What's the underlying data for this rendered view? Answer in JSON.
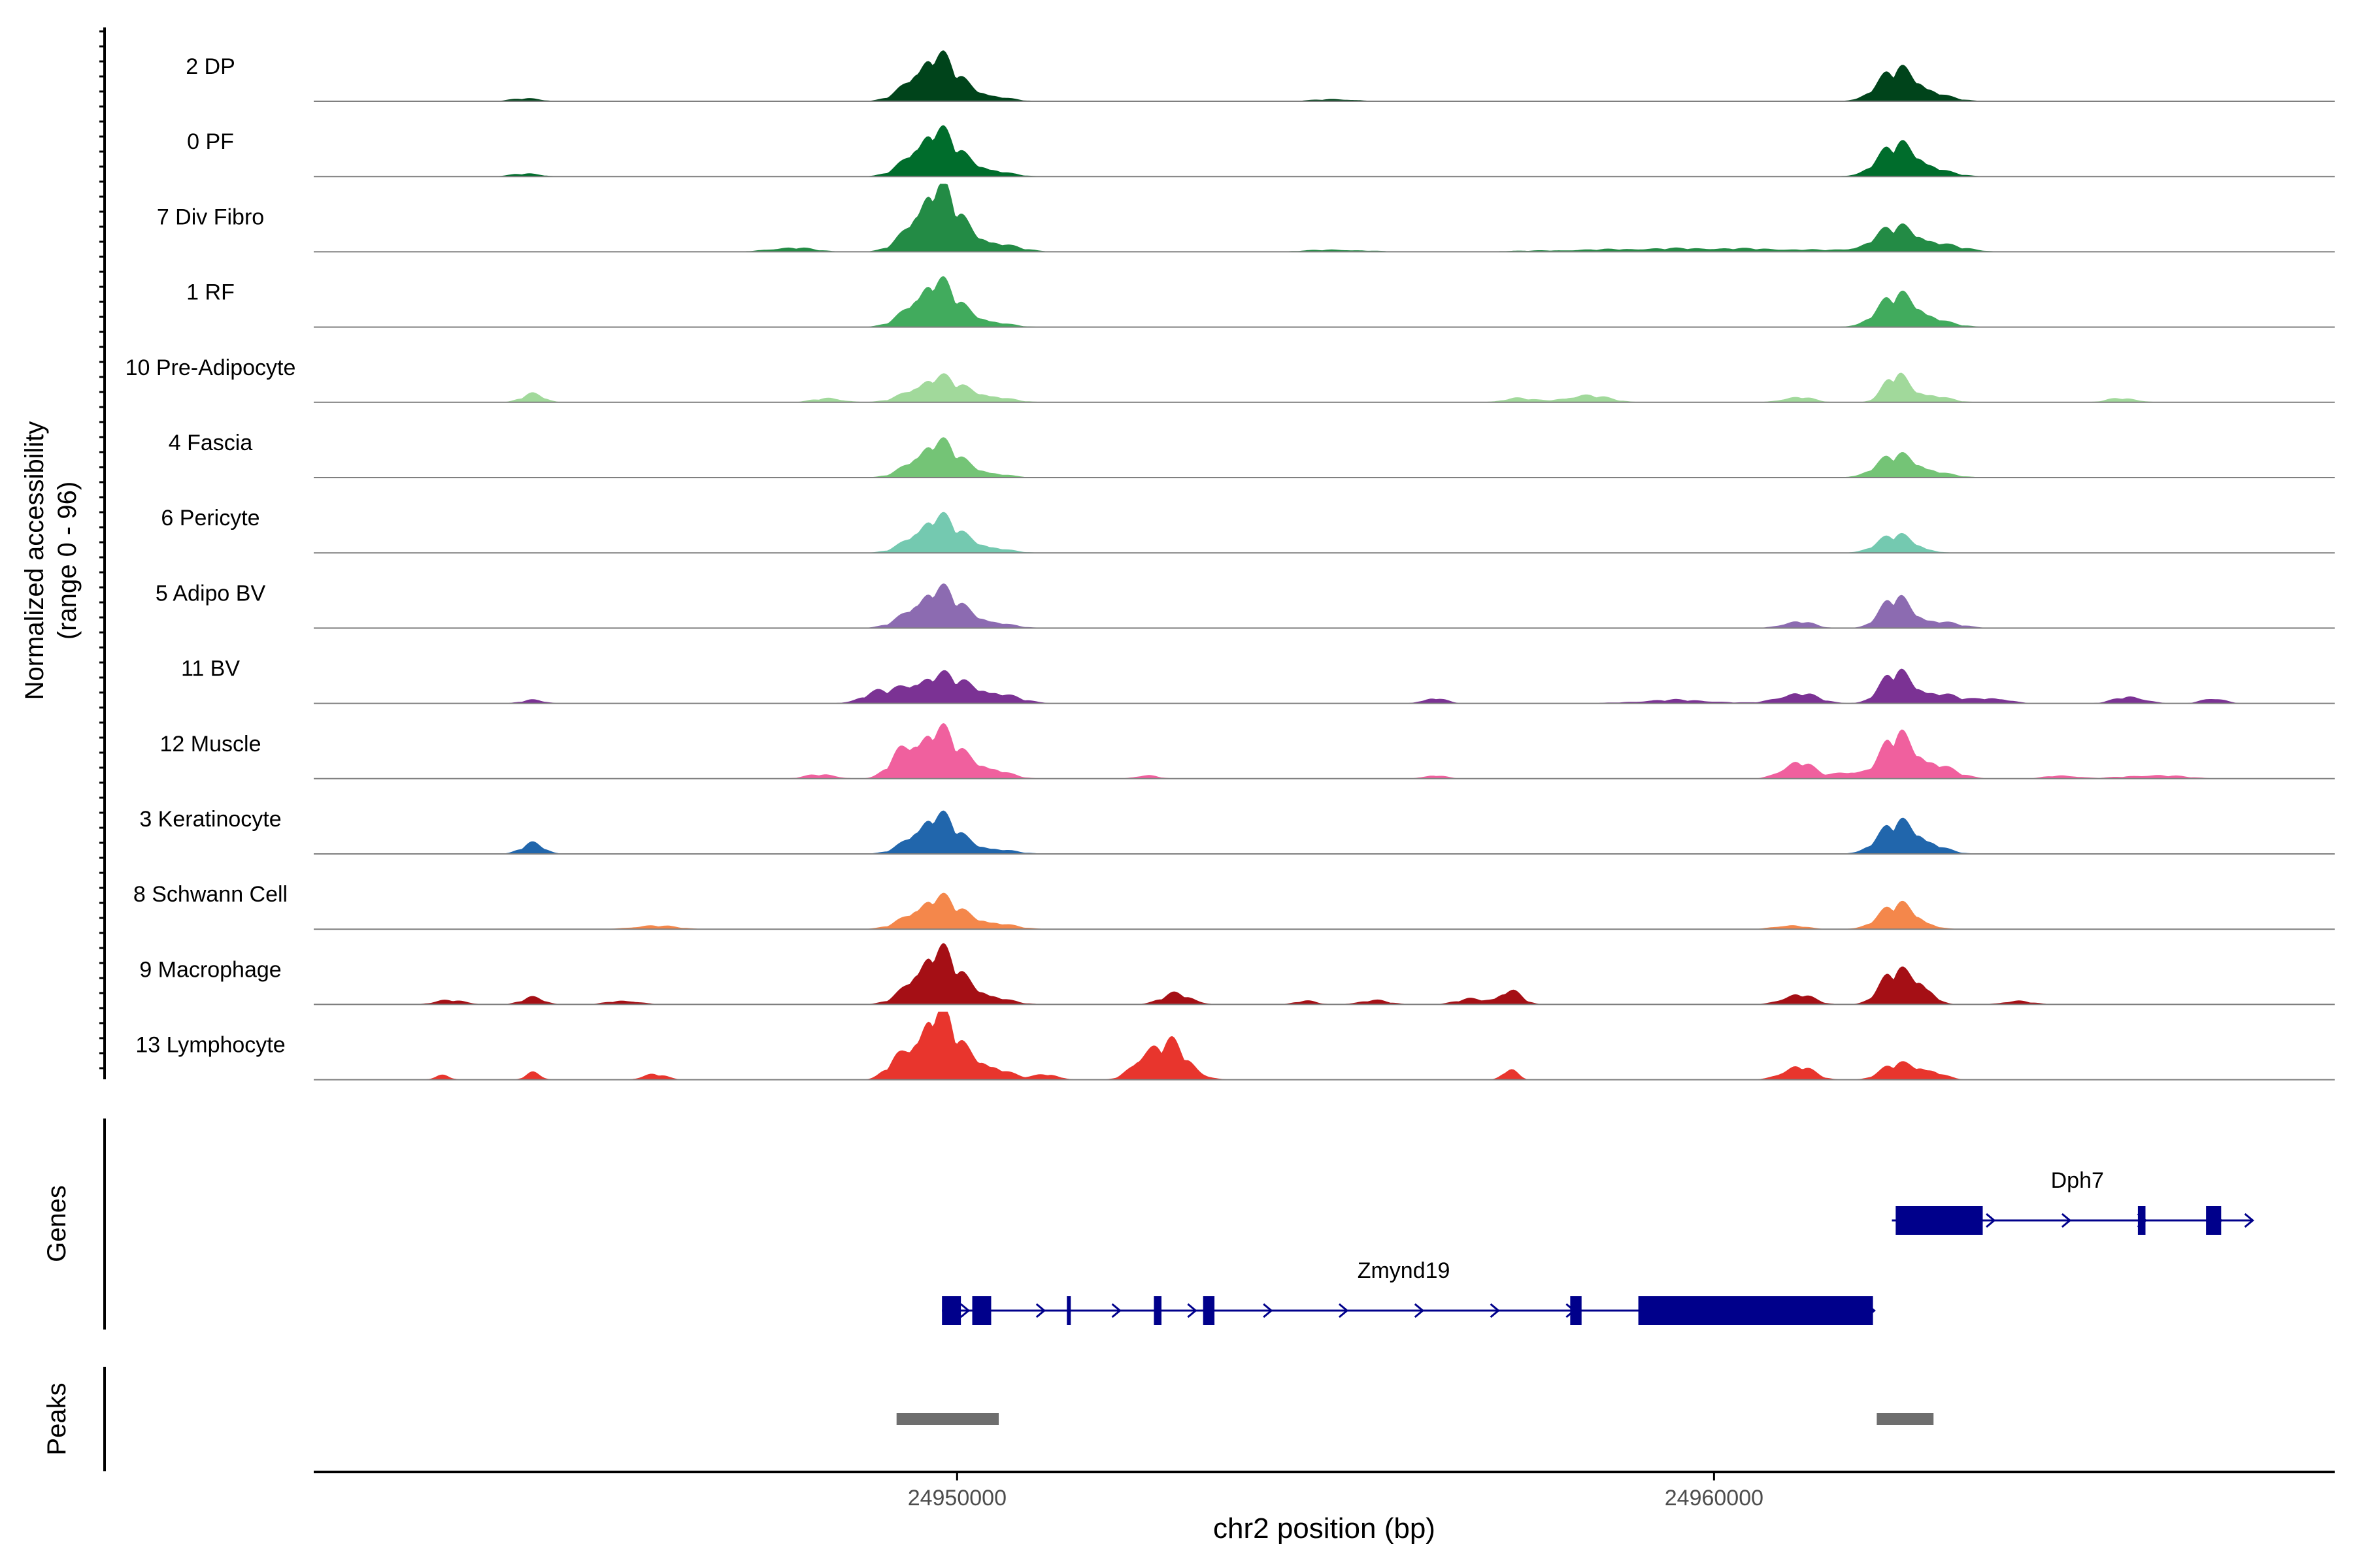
{
  "chart_data": {
    "type": "area",
    "title": "",
    "ylabel_line1": "Normalized accessibility",
    "ylabel_line2": "(range 0 - 96)",
    "ylim": [
      0,
      96
    ],
    "xlabel": "chr2 position (bp)",
    "xlim": [
      24941500,
      24968200
    ],
    "xticks": [
      {
        "value": 24950000,
        "label": "24950000"
      },
      {
        "value": 24960000,
        "label": "24960000"
      }
    ],
    "tracks": [
      {
        "name": "2 DP",
        "color": "#00441b",
        "peaks": [
          [
            24949680,
            65,
            280
          ],
          [
            24950300,
            10,
            300
          ],
          [
            24962420,
            40,
            260
          ],
          [
            24962800,
            10,
            300
          ],
          [
            24944300,
            4,
            200
          ],
          [
            24955000,
            3,
            300
          ]
        ]
      },
      {
        "name": "0 PF",
        "color": "#006d2c",
        "peaks": [
          [
            24949680,
            65,
            280
          ],
          [
            24950300,
            12,
            300
          ],
          [
            24962420,
            40,
            260
          ],
          [
            24962800,
            10,
            300
          ],
          [
            24944300,
            4,
            200
          ]
        ]
      },
      {
        "name": "7 Div Fibro",
        "color": "#238b45",
        "peaks": [
          [
            24949700,
            90,
            280
          ],
          [
            24950350,
            15,
            350
          ],
          [
            24962400,
            30,
            280
          ],
          [
            24962900,
            10,
            350
          ],
          [
            24947800,
            6,
            300
          ],
          [
            24959800,
            5,
            1500
          ],
          [
            24955000,
            3,
            400
          ]
        ]
      },
      {
        "name": "1 RF",
        "color": "#41ab5d",
        "peaks": [
          [
            24949680,
            65,
            280
          ],
          [
            24950300,
            10,
            300
          ],
          [
            24962420,
            40,
            260
          ],
          [
            24962800,
            10,
            300
          ]
        ]
      },
      {
        "name": "10 Pre-Adipocyte",
        "color": "#a1d99b",
        "peaks": [
          [
            24944400,
            12,
            150
          ],
          [
            24949700,
            35,
            300
          ],
          [
            24950350,
            10,
            300
          ],
          [
            24962400,
            35,
            160
          ],
          [
            24962800,
            12,
            250
          ],
          [
            24948300,
            6,
            200
          ],
          [
            24958300,
            10,
            300
          ],
          [
            24961100,
            8,
            200
          ],
          [
            24965400,
            6,
            200
          ],
          [
            24957400,
            6,
            200
          ]
        ]
      },
      {
        "name": "4 Fascia",
        "color": "#74c476",
        "peaks": [
          [
            24949700,
            50,
            280
          ],
          [
            24950300,
            8,
            300
          ],
          [
            24962400,
            28,
            260
          ],
          [
            24962800,
            8,
            300
          ]
        ]
      },
      {
        "name": "6 Pericyte",
        "color": "#74c9b0",
        "peaks": [
          [
            24949700,
            50,
            280
          ],
          [
            24950300,
            10,
            300
          ],
          [
            24962420,
            25,
            250
          ]
        ]
      },
      {
        "name": "5 Adipo BV",
        "color": "#8c6bb1",
        "peaks": [
          [
            24949700,
            55,
            300
          ],
          [
            24950350,
            10,
            300
          ],
          [
            24962400,
            40,
            200
          ],
          [
            24961100,
            10,
            200
          ],
          [
            24962900,
            10,
            300
          ]
        ]
      },
      {
        "name": "11 BV",
        "color": "#7b3294",
        "peaks": [
          [
            24949700,
            40,
            400
          ],
          [
            24948900,
            10,
            200
          ],
          [
            24950500,
            12,
            300
          ],
          [
            24944400,
            5,
            150
          ],
          [
            24956300,
            8,
            150
          ],
          [
            24961100,
            15,
            250
          ],
          [
            24962400,
            40,
            200
          ],
          [
            24962900,
            15,
            300
          ],
          [
            24963700,
            8,
            200
          ],
          [
            24965500,
            10,
            200
          ],
          [
            24966600,
            8,
            150
          ],
          [
            24959500,
            5,
            500
          ]
        ]
      },
      {
        "name": "12 Muscle",
        "color": "#f0609e",
        "peaks": [
          [
            24949700,
            70,
            300
          ],
          [
            24949250,
            20,
            150
          ],
          [
            24950400,
            15,
            250
          ],
          [
            24948200,
            6,
            200
          ],
          [
            24952500,
            5,
            150
          ],
          [
            24956300,
            5,
            150
          ],
          [
            24961100,
            25,
            200
          ],
          [
            24962400,
            50,
            200
          ],
          [
            24962800,
            25,
            300
          ],
          [
            24961800,
            10,
            200
          ],
          [
            24964600,
            5,
            200
          ],
          [
            24965800,
            5,
            400
          ]
        ]
      },
      {
        "name": "3 Keratinocyte",
        "color": "#2166ac",
        "peaks": [
          [
            24949700,
            55,
            280
          ],
          [
            24950400,
            8,
            300
          ],
          [
            24944400,
            15,
            150
          ],
          [
            24962420,
            40,
            250
          ],
          [
            24962800,
            12,
            250
          ]
        ]
      },
      {
        "name": "8 Schwann Cell",
        "color": "#f4874b",
        "peaks": [
          [
            24949700,
            45,
            300
          ],
          [
            24950400,
            10,
            300
          ],
          [
            24962450,
            35,
            250
          ],
          [
            24961000,
            6,
            200
          ],
          [
            24946000,
            5,
            300
          ]
        ]
      },
      {
        "name": "9 Macrophage",
        "color": "#a50f15",
        "peaks": [
          [
            24949700,
            75,
            280
          ],
          [
            24950300,
            15,
            300
          ],
          [
            24952900,
            15,
            200
          ],
          [
            24955500,
            6,
            200
          ],
          [
            24957300,
            20,
            150
          ],
          [
            24961100,
            15,
            200
          ],
          [
            24962400,
            45,
            200
          ],
          [
            24962750,
            25,
            150
          ],
          [
            24956800,
            8,
            200
          ],
          [
            24943300,
            6,
            200
          ],
          [
            24944400,
            10,
            150
          ],
          [
            24945600,
            6,
            200
          ],
          [
            24964000,
            5,
            200
          ],
          [
            24954600,
            5,
            150
          ]
        ]
      },
      {
        "name": "13 Lymphocyte",
        "color": "#e8352d",
        "peaks": [
          [
            24949700,
            95,
            250
          ],
          [
            24949200,
            20,
            150
          ],
          [
            24950300,
            25,
            300
          ],
          [
            24952800,
            50,
            250
          ],
          [
            24952400,
            20,
            150
          ],
          [
            24944400,
            10,
            100
          ],
          [
            24943200,
            6,
            100
          ],
          [
            24957300,
            15,
            100
          ],
          [
            24961100,
            20,
            200
          ],
          [
            24962400,
            20,
            200
          ],
          [
            24962800,
            15,
            200
          ],
          [
            24951200,
            8,
            150
          ],
          [
            24946000,
            8,
            150
          ]
        ]
      }
    ],
    "genes_label": "Genes",
    "genes": [
      {
        "name": "Dph7",
        "strand": "+",
        "start": 24962350,
        "end": 24967100,
        "exons": [
          [
            24962400,
            24963550
          ],
          [
            24965600,
            24965700
          ],
          [
            24966500,
            24966700
          ]
        ]
      },
      {
        "name": "Zmynd19",
        "strand": "+",
        "start": 24949800,
        "end": 24962100,
        "exons": [
          [
            24949800,
            24950050
          ],
          [
            24950200,
            24950450
          ],
          [
            24951450,
            24951500
          ],
          [
            24952600,
            24952700
          ],
          [
            24953250,
            24953400
          ],
          [
            24958100,
            24958250
          ],
          [
            24959000,
            24962100
          ]
        ]
      }
    ],
    "peaks_label": "Peaks",
    "peak_regions": [
      [
        24949200,
        24950550
      ],
      [
        24962150,
        24962900
      ]
    ]
  }
}
